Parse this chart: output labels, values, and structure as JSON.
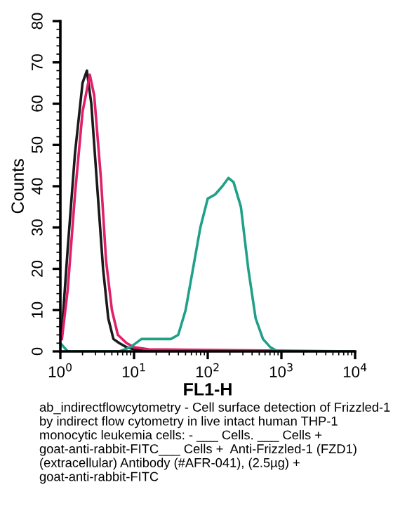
{
  "chart_data": {
    "type": "line",
    "xlabel": "FL1-H",
    "ylabel": "Counts",
    "log": "x",
    "xlim": [
      1,
      10000
    ],
    "xticks": [
      {
        "value": 1,
        "label": "10$^{0}$"
      },
      {
        "value": 10,
        "label": "10$^{1}$"
      },
      {
        "value": 100,
        "label": "10$^{2}$"
      },
      {
        "value": 1000,
        "label": "10$^{3}$"
      },
      {
        "value": 10000,
        "label": "10$^{4}$"
      }
    ],
    "ylim": [
      0,
      80
    ],
    "yticks": [
      0,
      10,
      20,
      30,
      40,
      50,
      60,
      70,
      80
    ],
    "grid": false,
    "legend": false,
    "marker": "none",
    "line_style": "solid",
    "series": [
      {
        "color": "#1a1a1a",
        "x": [
          1.05,
          1.26,
          1.58,
          2.0,
          2.29,
          2.63,
          3.16,
          3.8,
          4.47,
          5.25,
          6.31,
          7.94,
          10,
          31.6,
          10000
        ],
        "values": [
          5,
          25,
          48,
          65,
          68,
          60,
          40,
          20,
          8,
          3,
          2,
          1,
          0.5,
          0,
          0
        ]
      },
      {
        "color": "#e0206a",
        "x": [
          1.05,
          1.26,
          1.58,
          2.0,
          2.51,
          2.88,
          3.55,
          4.17,
          5.01,
          6.03,
          7.94,
          10,
          15.8,
          10000
        ],
        "values": [
          3,
          15,
          38,
          58,
          67,
          62,
          42,
          22,
          10,
          4,
          2,
          1,
          0.5,
          0
        ]
      },
      {
        "color": "#1fa088",
        "x": [
          1,
          1.26,
          6.31,
          8.91,
          12.6,
          20,
          31.6,
          39.8,
          50.1,
          63.1,
          79.4,
          100,
          126,
          158,
          191,
          224,
          282,
          355,
          447,
          562,
          708,
          891,
          10000
        ],
        "values": [
          2,
          0,
          0,
          1,
          3,
          3,
          3,
          4,
          10,
          20,
          30,
          37,
          38,
          40,
          42,
          41,
          35,
          20,
          8,
          3,
          1,
          0,
          0
        ]
      }
    ],
    "annotations": [
      "ab_indirectflowcytometry - Cell surface detection of Frizzled-1 by indirect flow cytometry in live intact human THP-1 monocytic leukemia cells: - ___ Cells. ___ Cells + goat-anti-rabbit-FITC___ Cells +  Anti-Frizzled-1 (FZD1) (extracellular) Antibody (#AFR-041), (2.5µg) + goat-anti-rabbit-FITC"
    ]
  }
}
